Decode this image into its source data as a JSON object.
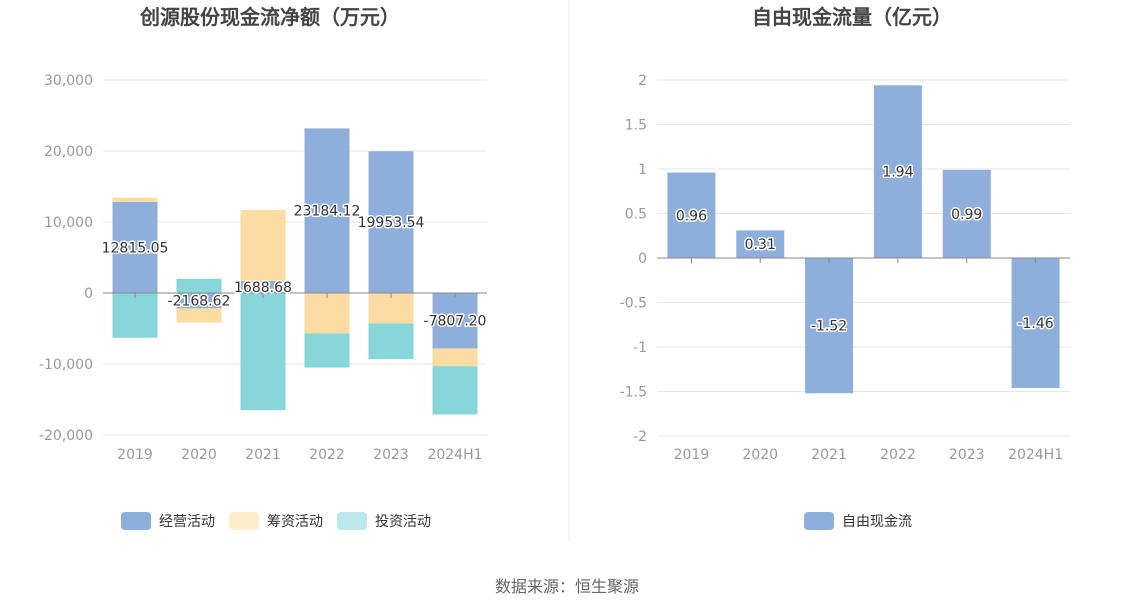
{
  "source": "数据来源：恒生聚源",
  "chart_data": [
    {
      "type": "bar",
      "stacked": true,
      "title": "创源股份现金流净额（万元）",
      "categories": [
        "2019",
        "2020",
        "2021",
        "2022",
        "2023",
        "2024H1"
      ],
      "ylim": [
        -20000,
        30000
      ],
      "yticks": [
        30000,
        20000,
        10000,
        0,
        -10000,
        -20000
      ],
      "ytick_labels": [
        "30,000",
        "20,000",
        "10,000",
        "0",
        "-10,000",
        "-20,000"
      ],
      "grid": true,
      "legend_position": "bottom",
      "series": [
        {
          "name": "经营活动",
          "color": "#8eaedb",
          "values": [
            12815.05,
            -2168.62,
            1688.68,
            23184.12,
            19953.54,
            -7807.2
          ]
        },
        {
          "name": "筹资活动",
          "color": "#fddca4",
          "values": [
            600,
            -2000,
            10000,
            -5700,
            -4300,
            -2500
          ]
        },
        {
          "name": "投资活动",
          "color": "#86d6da",
          "values": [
            -6300,
            2000,
            -16500,
            -4800,
            -5000,
            -6800
          ]
        }
      ],
      "data_labels": [
        "12815.05",
        "-2168.62",
        "1688.68",
        "23184.12",
        "19953.54",
        "-7807.20"
      ]
    },
    {
      "type": "bar",
      "title": "自由现金流量（亿元）",
      "categories": [
        "2019",
        "2020",
        "2021",
        "2022",
        "2023",
        "2024H1"
      ],
      "ylim": [
        -2,
        2
      ],
      "yticks": [
        2,
        1.5,
        1,
        0.5,
        0,
        -0.5,
        -1,
        -1.5,
        -2
      ],
      "ytick_labels": [
        "2",
        "1.5",
        "1",
        "0.5",
        "0",
        "-0.5",
        "-1",
        "-1.5",
        "-2"
      ],
      "grid": true,
      "legend_position": "bottom",
      "series": [
        {
          "name": "自由现金流",
          "color": "#8eaedb",
          "values": [
            0.96,
            0.31,
            -1.52,
            1.94,
            0.99,
            -1.46
          ]
        }
      ],
      "data_labels": [
        "0.96",
        "0.31",
        "-1.52",
        "1.94",
        "0.99",
        "-1.46"
      ]
    }
  ]
}
